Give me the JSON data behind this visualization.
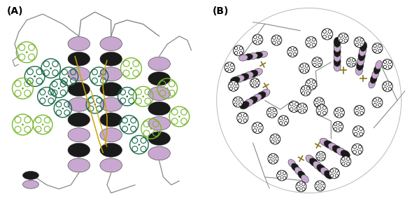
{
  "figsize": [
    5.89,
    2.87
  ],
  "dpi": 100,
  "background_color": "#ffffff",
  "label_A": "(A)",
  "label_B": "(B)",
  "label_fontsize": 10,
  "helix_color": "#c8a8d0",
  "helix_dark": "#1a1a1a",
  "loop_color": "#888888",
  "chl_a_color": "#1a6b4a",
  "chl_b_color": "#7ab830",
  "carotenoid_color": "#c8a800",
  "chl_b_top_color": "#ffffff",
  "chl_b_top_edge": "#222222"
}
